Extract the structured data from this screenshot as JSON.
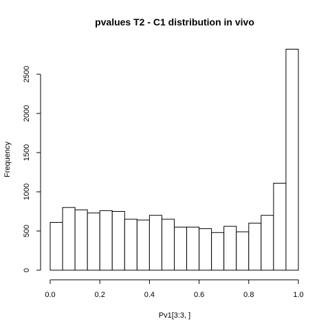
{
  "chart_data": {
    "type": "bar",
    "title": "pvalues T2 - C1 distribution in vivo",
    "xlabel": "Pv1[3:3, ]",
    "ylabel": "Frequency",
    "xlim": [
      0,
      1
    ],
    "ylim": [
      0,
      2800
    ],
    "x_ticks": [
      0.0,
      0.2,
      0.4,
      0.6,
      0.8,
      1.0
    ],
    "x_tick_labels": [
      "0.0",
      "0.2",
      "0.4",
      "0.6",
      "0.8",
      "1.0"
    ],
    "y_ticks": [
      0,
      500,
      1000,
      1500,
      2000,
      2500
    ],
    "y_tick_labels": [
      "0",
      "500",
      "1000",
      "1500",
      "2000",
      "2500"
    ],
    "bins": [
      {
        "x0": 0.0,
        "x1": 0.05,
        "value": 610
      },
      {
        "x0": 0.05,
        "x1": 0.1,
        "value": 800
      },
      {
        "x0": 0.1,
        "x1": 0.15,
        "value": 770
      },
      {
        "x0": 0.15,
        "x1": 0.2,
        "value": 730
      },
      {
        "x0": 0.2,
        "x1": 0.25,
        "value": 760
      },
      {
        "x0": 0.25,
        "x1": 0.3,
        "value": 750
      },
      {
        "x0": 0.3,
        "x1": 0.35,
        "value": 650
      },
      {
        "x0": 0.35,
        "x1": 0.4,
        "value": 640
      },
      {
        "x0": 0.4,
        "x1": 0.45,
        "value": 700
      },
      {
        "x0": 0.45,
        "x1": 0.5,
        "value": 650
      },
      {
        "x0": 0.5,
        "x1": 0.55,
        "value": 550
      },
      {
        "x0": 0.55,
        "x1": 0.6,
        "value": 550
      },
      {
        "x0": 0.6,
        "x1": 0.65,
        "value": 530
      },
      {
        "x0": 0.65,
        "x1": 0.7,
        "value": 480
      },
      {
        "x0": 0.7,
        "x1": 0.75,
        "value": 560
      },
      {
        "x0": 0.75,
        "x1": 0.8,
        "value": 490
      },
      {
        "x0": 0.8,
        "x1": 0.85,
        "value": 600
      },
      {
        "x0": 0.85,
        "x1": 0.9,
        "value": 700
      },
      {
        "x0": 0.9,
        "x1": 0.95,
        "value": 1110
      },
      {
        "x0": 0.95,
        "x1": 1.0,
        "value": 2820
      }
    ],
    "grid": false,
    "legend": "none"
  }
}
